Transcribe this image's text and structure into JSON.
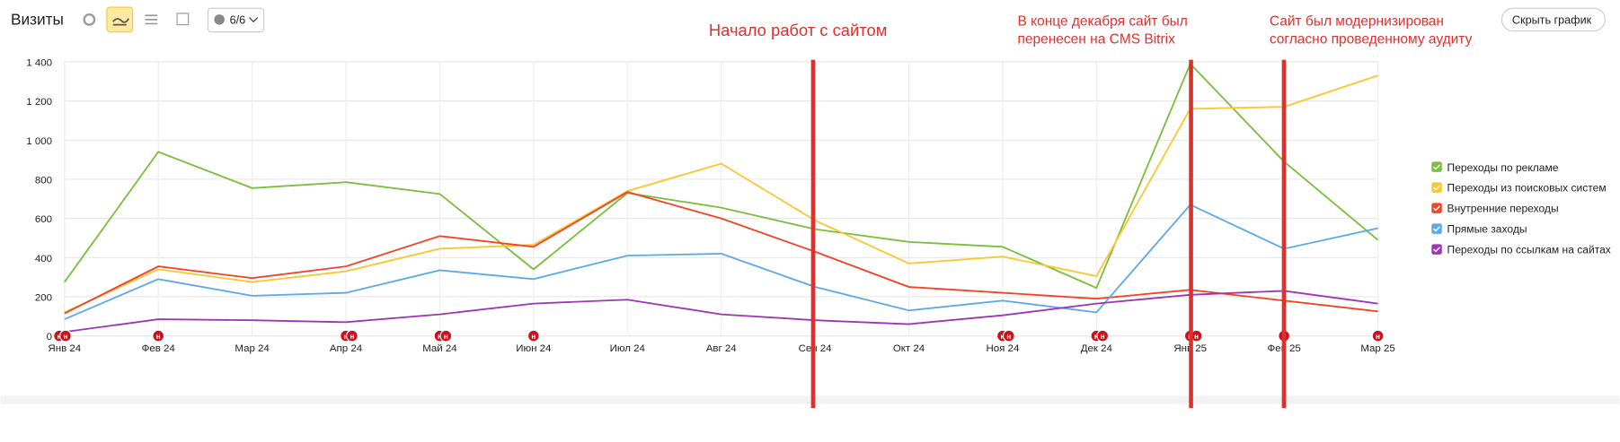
{
  "toolbar": {
    "title": "Визиты",
    "counter": "6/6",
    "hide_button": "Скрыть график"
  },
  "chart_data": {
    "type": "line",
    "categories": [
      "Янв 24",
      "Фев 24",
      "Мар 24",
      "Апр 24",
      "Май 24",
      "Июн 24",
      "Июл 24",
      "Авг 24",
      "Сен 24",
      "Окт 24",
      "Ноя 24",
      "Дек 24",
      "Янв 25",
      "Фев 25",
      "Мар 25"
    ],
    "series": [
      {
        "name": "Переходы по рекламе",
        "color": "#7cbf3f",
        "values": [
          275,
          940,
          755,
          785,
          725,
          340,
          730,
          655,
          545,
          480,
          455,
          245,
          1390,
          890,
          490
        ]
      },
      {
        "name": "Переходы из поисковых систем",
        "color": "#f9c634",
        "values": [
          120,
          340,
          275,
          330,
          445,
          465,
          740,
          880,
          590,
          370,
          405,
          305,
          1160,
          1170,
          1330
        ]
      },
      {
        "name": "Внутренние переходы",
        "color": "#f44322",
        "values": [
          115,
          355,
          295,
          355,
          510,
          455,
          735,
          600,
          430,
          250,
          220,
          190,
          235,
          180,
          125
        ]
      },
      {
        "name": "Прямые заходы",
        "color": "#5ea9e6",
        "values": [
          85,
          290,
          205,
          220,
          335,
          290,
          410,
          420,
          250,
          130,
          180,
          120,
          670,
          445,
          550
        ]
      },
      {
        "name": "Переходы по ссылкам на сайтах",
        "color": "#9c36b5",
        "values": [
          20,
          85,
          80,
          70,
          110,
          165,
          185,
          110,
          80,
          60,
          105,
          165,
          210,
          230,
          165
        ]
      }
    ],
    "ylim": [
      0,
      1400
    ],
    "yticks": [
      0,
      200,
      400,
      600,
      800,
      {
        "value": 1000,
        "label": "1 000"
      },
      {
        "value": 1200,
        "label": "1 200"
      },
      {
        "value": 1400,
        "label": "1 400"
      }
    ],
    "grid": true,
    "marker_label": "н",
    "annotations": [
      [
        "Начало работ с сайтом"
      ],
      [
        "В конце декабря сайт был",
        "перенесен на CMS Bitrix"
      ],
      [
        "Сайт был модернизирован",
        "согласно проведенному аудиту"
      ]
    ]
  }
}
